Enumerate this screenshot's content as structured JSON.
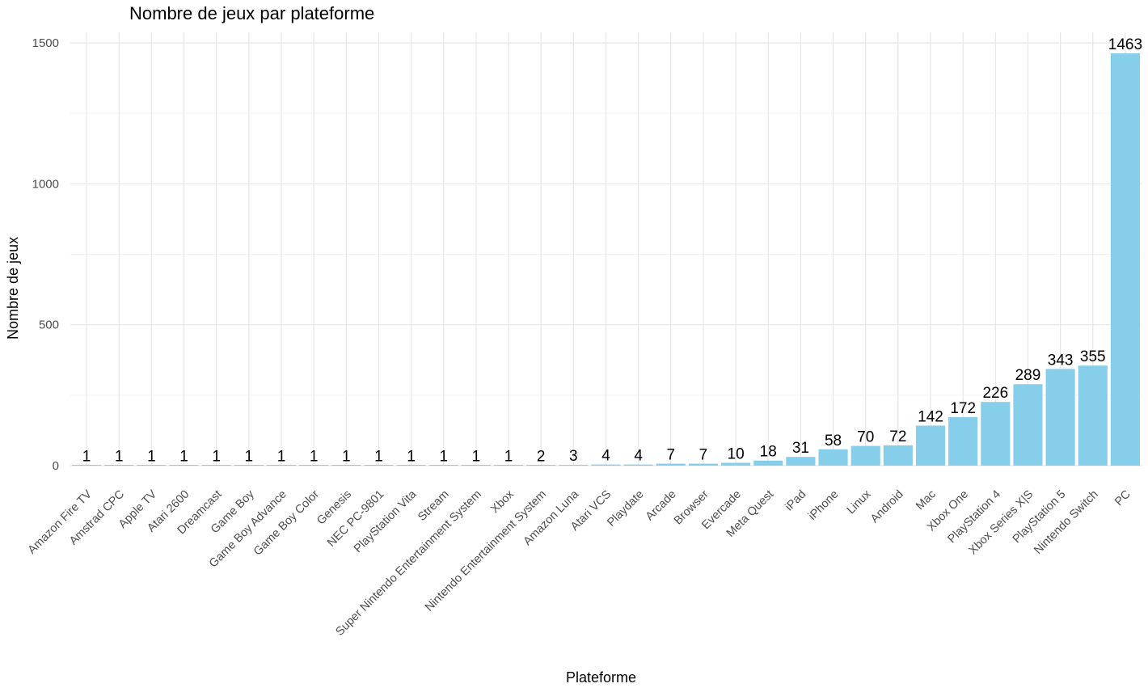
{
  "chart_data": {
    "type": "bar",
    "title": "Nombre de jeux par plateforme",
    "xlabel": "Plateforme",
    "ylabel": "Nombre de jeux",
    "ylim": [
      0,
      1550
    ],
    "yticks": [
      0,
      500,
      1000,
      1500
    ],
    "grid": true,
    "bar_color": "#87CEEB",
    "categories": [
      "Amazon Fire TV",
      "Amstrad CPC",
      "Apple TV",
      "Atari 2600",
      "Dreamcast",
      "Game Boy",
      "Game Boy Advance",
      "Game Boy Color",
      "Genesis",
      "NEC PC-9801",
      "PlayStation Vita",
      "Stream",
      "Super Nintendo Entertainment System",
      "Xbox",
      "Nintendo Entertainment System",
      "Amazon Luna",
      "Atari VCS",
      "Playdate",
      "Arcade",
      "Browser",
      "Evercade",
      "Meta Quest",
      "iPad",
      "iPhone",
      "Linux",
      "Android",
      "Mac",
      "Xbox One",
      "PlayStation 4",
      "Xbox Series X|S",
      "PlayStation 5",
      "Nintendo Switch",
      "PC"
    ],
    "values": [
      1,
      1,
      1,
      1,
      1,
      1,
      1,
      1,
      1,
      1,
      1,
      1,
      1,
      1,
      2,
      3,
      4,
      4,
      7,
      7,
      10,
      18,
      31,
      58,
      70,
      72,
      142,
      172,
      226,
      289,
      343,
      355,
      1463
    ]
  }
}
